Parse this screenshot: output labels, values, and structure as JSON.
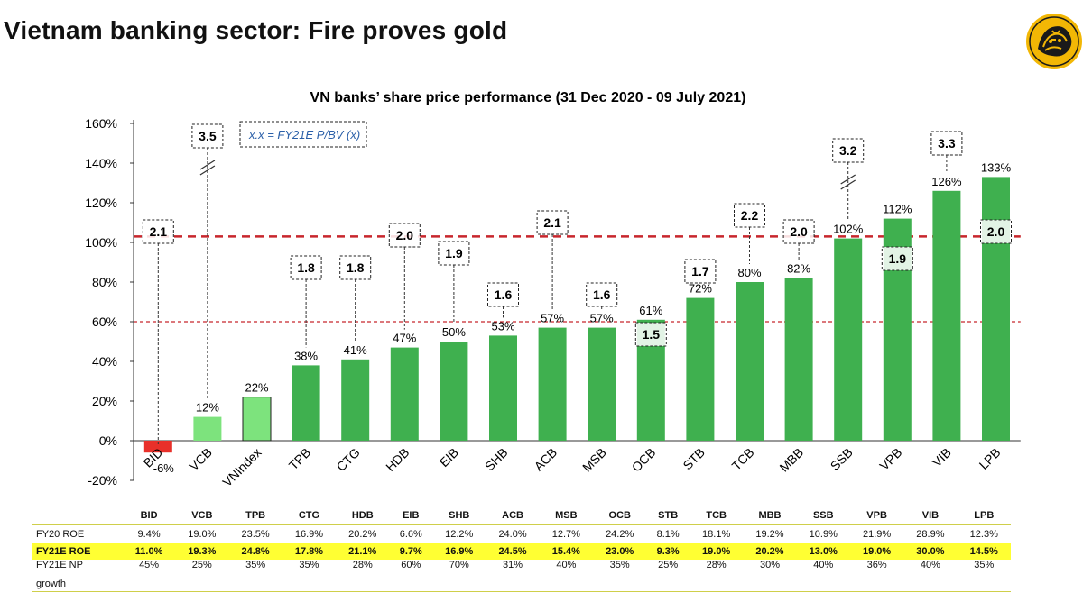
{
  "page": {
    "title": "Vietnam banking sector: Fire proves gold"
  },
  "chart_data": {
    "type": "bar",
    "title": "VN banks’ share price performance (31 Dec 2020 - 09 July 2021)",
    "legend_note": "x.x = FY21E P/BV (x)",
    "ylim": [
      -20,
      160
    ],
    "yticks": [
      "160%",
      "140%",
      "120%",
      "100%",
      "80%",
      "60%",
      "40%",
      "20%",
      "0%",
      "-20%"
    ],
    "ytick_values": [
      160,
      140,
      120,
      100,
      80,
      60,
      40,
      20,
      0,
      -20
    ],
    "categories": [
      "BID",
      "VCB",
      "VNIndex",
      "TPB",
      "CTG",
      "HDB",
      "EIB",
      "SHB",
      "ACB",
      "MSB",
      "OCB",
      "STB",
      "TCB",
      "MBB",
      "SSB",
      "VPB",
      "VIB",
      "LPB"
    ],
    "values": [
      -6,
      12,
      22,
      38,
      41,
      47,
      50,
      53,
      57,
      57,
      61,
      72,
      80,
      82,
      102,
      112,
      126,
      133
    ],
    "value_labels": [
      "-6%",
      "12%",
      "22%",
      "38%",
      "41%",
      "47%",
      "50%",
      "53%",
      "57%",
      "57%",
      "61%",
      "72%",
      "80%",
      "82%",
      "102%",
      "112%",
      "126%",
      "133%"
    ],
    "pbv": [
      "2.1",
      "3.5",
      "",
      "1.8",
      "1.8",
      "2.0",
      "1.9",
      "1.6",
      "2.1",
      "1.6",
      "1.5",
      "1.7",
      "2.2",
      "2.0",
      "3.2",
      "1.9",
      "3.3",
      "2.0"
    ],
    "pbv_axis_break": [
      false,
      true,
      false,
      false,
      false,
      false,
      false,
      false,
      false,
      false,
      false,
      false,
      false,
      false,
      true,
      false,
      false,
      false
    ],
    "reference_lines": [
      103,
      60
    ],
    "colors": {
      "negative": "#e8302a",
      "highlight": "#7de37d",
      "bar": "#3fb04f",
      "ref_line": "#c8262c",
      "note_text": "#2a5fa8"
    }
  },
  "table": {
    "headers": [
      "BID",
      "VCB",
      "",
      "TPB",
      "CTG",
      "HDB",
      "EIB",
      "SHB",
      "ACB",
      "MSB",
      "OCB",
      "STB",
      "TCB",
      "MBB",
      "SSB",
      "VPB",
      "VIB",
      "LPB"
    ],
    "rows": [
      {
        "label": "FY20 ROE",
        "values": [
          "9.4%",
          "19.0%",
          "",
          "23.5%",
          "16.9%",
          "20.2%",
          "6.6%",
          "12.2%",
          "24.0%",
          "12.7%",
          "24.2%",
          "8.1%",
          "18.1%",
          "19.2%",
          "10.9%",
          "21.9%",
          "28.9%",
          "12.3%"
        ]
      },
      {
        "label": "FY21E ROE",
        "values": [
          "11.0%",
          "19.3%",
          "",
          "24.8%",
          "17.8%",
          "21.1%",
          "9.7%",
          "16.9%",
          "24.5%",
          "15.4%",
          "23.0%",
          "9.3%",
          "19.0%",
          "20.2%",
          "13.0%",
          "19.0%",
          "30.0%",
          "14.5%"
        ]
      },
      {
        "label": "FY21E NP",
        "label2": "growth",
        "values": [
          "45%",
          "25%",
          "",
          "35%",
          "35%",
          "28%",
          "60%",
          "70%",
          "31%",
          "40%",
          "35%",
          "25%",
          "28%",
          "30%",
          "40%",
          "36%",
          "40%",
          "35%"
        ]
      }
    ]
  }
}
